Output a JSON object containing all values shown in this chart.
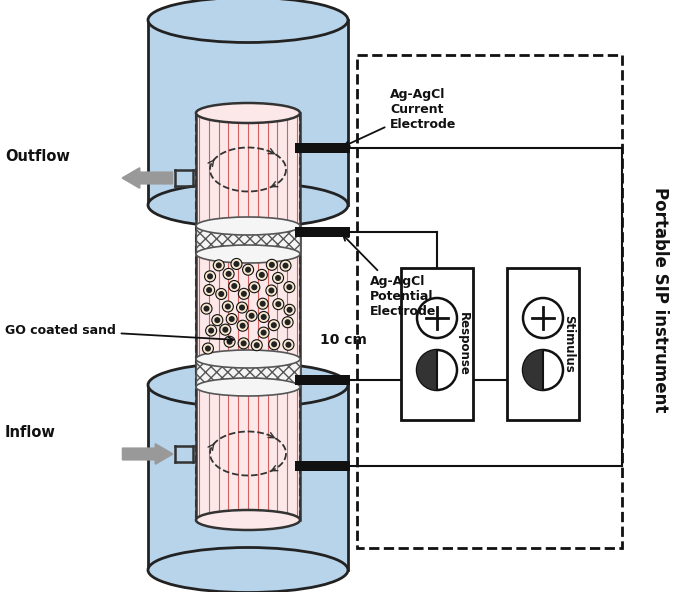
{
  "bg_color": "#ffffff",
  "cyl_fill": "#b8d4ea",
  "cyl_edge": "#222222",
  "tube_fill": "#fce8e8",
  "tube_stripe": "#d46060",
  "sand_dot": "#111111",
  "sand_dot_ring": "#777777",
  "hatch_fill": "#f0f0f0",
  "hatch_edge": "#555555",
  "electrode_color": "#111111",
  "line_color": "#111111",
  "text_color": "#111111",
  "outflow_label": "Outflow",
  "inflow_label": "Inflow",
  "go_sand_label": "GO coated sand",
  "dim_label": "10 cm",
  "curr_elec_label": "Ag-AgCl\nCurrent\nElectrode",
  "pot_elec_label": "Ag-AgCl\nPotential\nElectrode",
  "response_label": "Response",
  "stimulus_label": "Stimulus",
  "portable_label": "Portable SIP instrument"
}
